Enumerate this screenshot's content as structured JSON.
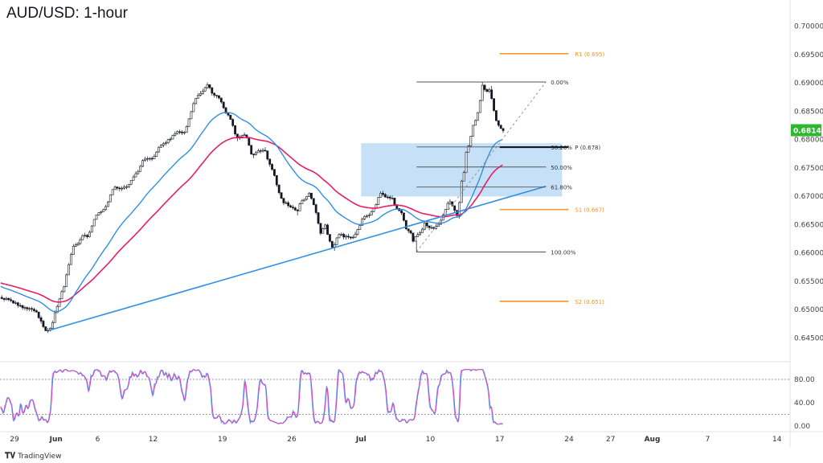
{
  "title": "AUD/USD: 1-hour",
  "branding": "TradingView",
  "colors": {
    "up_candle": "#131722",
    "fast_ma": "#2f8fe6",
    "slow_ma": "#e91e63",
    "trendline": "#2f8fe6",
    "pivot_levels": "#f7931e",
    "fib_lines": "#555555",
    "zone_fill": "#bcdaf7",
    "last_price_bg": "#2fb82f",
    "stoch_k": "#5fb2f5",
    "stoch_d": "#d63fbb"
  },
  "price_axis": {
    "labels": [
      "0.70000",
      "0.69500",
      "0.69000",
      "0.68500",
      "0.68000",
      "0.67500",
      "0.67000",
      "0.66500",
      "0.66000",
      "0.65500",
      "0.65000",
      "0.64500"
    ],
    "range": [
      0.645,
      0.7
    ],
    "last_price": "0.68142"
  },
  "x_ticks": [
    {
      "label": "29",
      "date": "2023-05-29"
    },
    {
      "label": "Jun",
      "date": "2023-06-01"
    },
    {
      "label": "6",
      "date": "2023-06-06"
    },
    {
      "label": "12",
      "date": "2023-06-12"
    },
    {
      "label": "19",
      "date": "2023-06-19"
    },
    {
      "label": "26",
      "date": "2023-06-26"
    },
    {
      "label": "Jul",
      "date": "2023-07-03"
    },
    {
      "label": "10",
      "date": "2023-07-10"
    },
    {
      "label": "17",
      "date": "2023-07-17"
    },
    {
      "label": "24",
      "date": "2023-07-24"
    },
    {
      "label": "27",
      "date": "2023-07-27"
    },
    {
      "label": "Aug",
      "date": "2023-08-01"
    },
    {
      "label": "7",
      "date": "2023-08-07"
    },
    {
      "label": "14",
      "date": "2023-08-14"
    }
  ],
  "chart_data": {
    "type": "candlestick",
    "symbol": "AUD/USD",
    "timeframe": "1-hour",
    "ylim": [
      0.645,
      0.7
    ],
    "price_path": [
      {
        "date": "2023-05-26 00:00",
        "close": 0.652
      },
      {
        "date": "2023-05-30 07:00",
        "close": 0.6499
      },
      {
        "date": "2023-05-31 13:00",
        "close": 0.6463
      },
      {
        "date": "2023-06-01 14:00",
        "close": 0.6534
      },
      {
        "date": "2023-06-02 18:00",
        "close": 0.6619
      },
      {
        "date": "2023-06-06 12:00",
        "close": 0.6676
      },
      {
        "date": "2023-06-08 06:00",
        "close": 0.6718
      },
      {
        "date": "2023-06-12 13:00",
        "close": 0.6789
      },
      {
        "date": "2023-06-14 07:00",
        "close": 0.6811
      },
      {
        "date": "2023-06-15 22:00",
        "close": 0.6896
      },
      {
        "date": "2023-06-16 22:00",
        "close": 0.6867
      },
      {
        "date": "2023-06-20 01:00",
        "close": 0.68
      },
      {
        "date": "2023-06-21 05:00",
        "close": 0.6768
      },
      {
        "date": "2023-06-22 02:00",
        "close": 0.6782
      },
      {
        "date": "2023-06-23 06:00",
        "close": 0.6697
      },
      {
        "date": "2023-06-26 10:00",
        "close": 0.6669
      },
      {
        "date": "2023-06-27 07:00",
        "close": 0.6704
      },
      {
        "date": "2023-06-28 03:00",
        "close": 0.6633
      },
      {
        "date": "2023-06-29 00:00",
        "close": 0.6605
      },
      {
        "date": "2023-06-30 11:00",
        "close": 0.6626
      },
      {
        "date": "2023-07-03 22:00",
        "close": 0.6676
      },
      {
        "date": "2023-07-04 19:00",
        "close": 0.6697
      },
      {
        "date": "2023-07-05 23:00",
        "close": 0.6669
      },
      {
        "date": "2023-07-06 19:00",
        "close": 0.6619
      },
      {
        "date": "2023-07-07 16:00",
        "close": 0.6655
      },
      {
        "date": "2023-07-10 13:00",
        "close": 0.6648
      },
      {
        "date": "2023-07-11 10:00",
        "close": 0.669
      },
      {
        "date": "2023-07-12 00:00",
        "close": 0.6662
      },
      {
        "date": "2023-07-12 11:00",
        "close": 0.674
      },
      {
        "date": "2023-07-12 21:00",
        "close": 0.6789
      },
      {
        "date": "2023-07-13 11:00",
        "close": 0.6846
      },
      {
        "date": "2023-07-13 18:00",
        "close": 0.6896
      },
      {
        "date": "2023-07-14 08:00",
        "close": 0.6889
      },
      {
        "date": "2023-07-17 05:00",
        "close": 0.68142
      }
    ],
    "pivots": [
      {
        "label": "R1 (0.695)",
        "value": 0.695
      },
      {
        "label": "P (0.678)",
        "value": 0.6785
      },
      {
        "label": "S1 (0.667)",
        "value": 0.6675
      },
      {
        "label": "S2 (0.651)",
        "value": 0.6513
      }
    ],
    "pivot_span": [
      "2023-07-17 00:00",
      "2023-07-21 23:00"
    ],
    "fibonacci": {
      "from": {
        "date": "2023-07-07 00:00",
        "price": 0.66
      },
      "to": {
        "date": "2023-07-20 08:00",
        "price": 0.69
      },
      "levels": [
        {
          "label": "0.00%",
          "value": 0.69
        },
        {
          "label": "38.20%",
          "value": 0.67854
        },
        {
          "label": "50.00%",
          "value": 0.675
        },
        {
          "label": "61.80%",
          "value": 0.67146
        },
        {
          "label": "100.00%",
          "value": 0.66
        }
      ]
    },
    "zone": {
      "from": "2023-07-03 00:00",
      "to": "2023-07-21 12:00",
      "top": 0.6792,
      "bottom": 0.6698
    },
    "trendline": {
      "from": {
        "date": "2023-05-31 13:00",
        "price": 0.6462
      },
      "to": {
        "date": "2023-07-20 08:00",
        "price": 0.6716
      }
    },
    "oscillator": {
      "type": "stochastic",
      "levels": [
        80,
        20
      ],
      "labels": [
        "80.00",
        "40.00",
        "0.00"
      ],
      "ylim": [
        0,
        100
      ]
    }
  }
}
